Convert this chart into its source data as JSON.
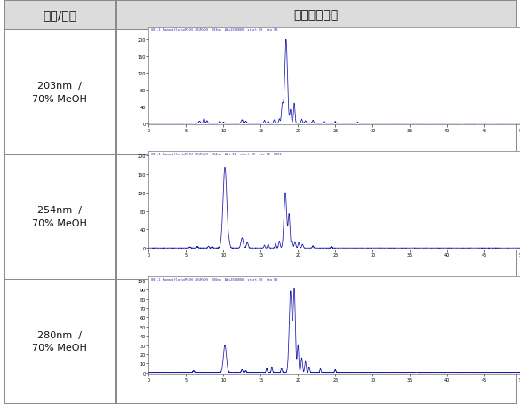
{
  "col1_header": "파장/용매",
  "col2_header": "크로마토그램",
  "rows": [
    {
      "label": "203nm  /\n70% MeOH",
      "variant": 0,
      "ymax": 220,
      "ytick": 40
    },
    {
      "label": "254nm  /\n70% MeOH",
      "variant": 1,
      "ymax": 200,
      "ytick": 40
    },
    {
      "label": "280nm  /\n70% MeOH",
      "variant": 2,
      "ymax": 100,
      "ytick": 10
    }
  ],
  "line_color": "#1818AA",
  "bg_color": "#FFFFFF",
  "header_bg": "#DCDCDC",
  "border_color": "#888888",
  "text_color": "#111111",
  "header_fontsize": 10,
  "label_fontsize": 8,
  "fig_width": 5.85,
  "fig_height": 4.56
}
